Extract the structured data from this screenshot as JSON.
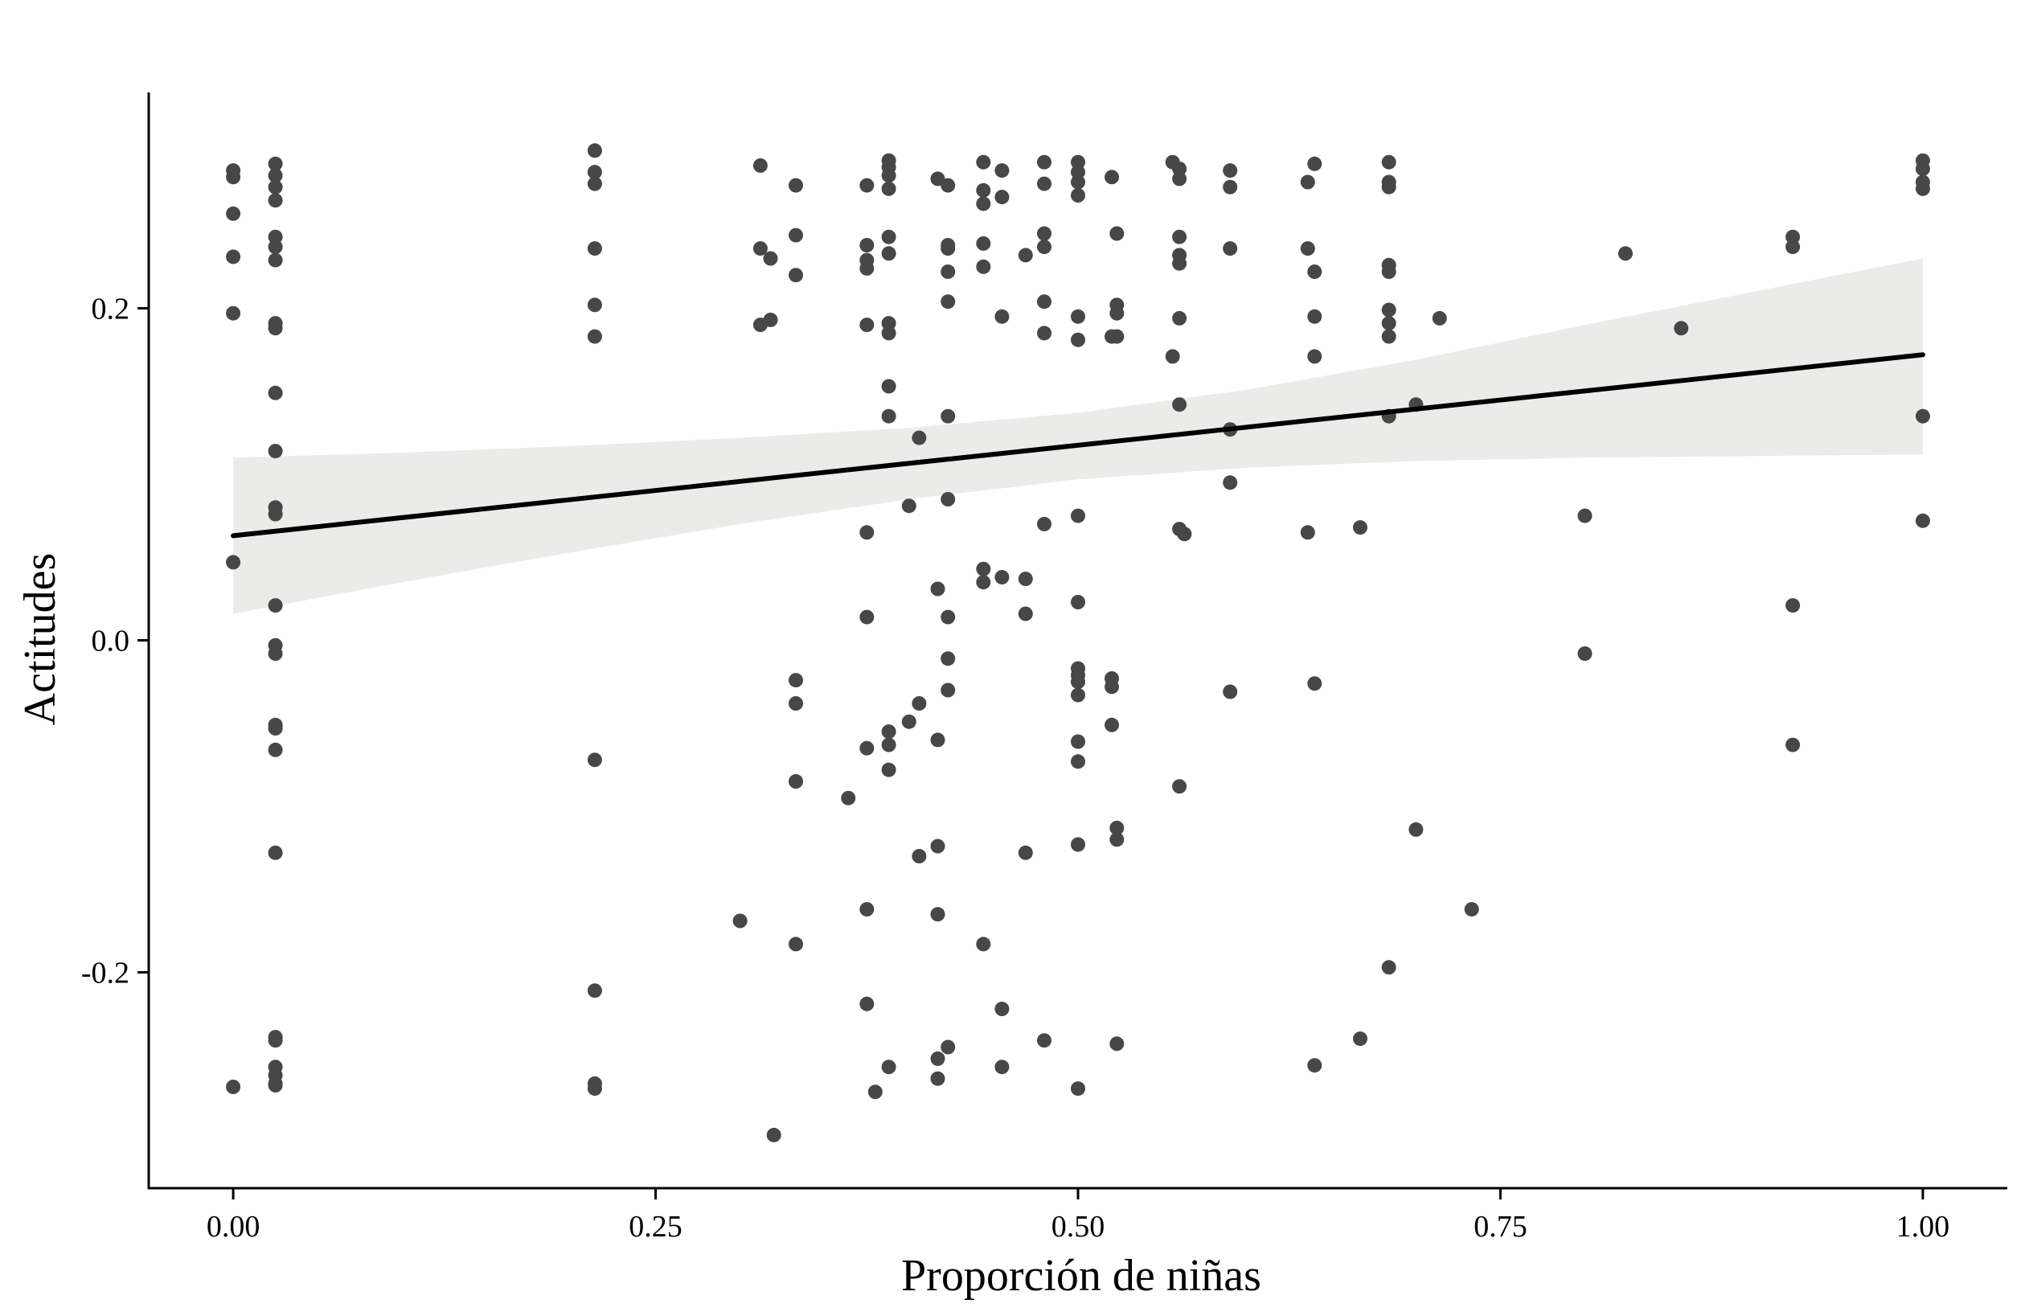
{
  "chart_data": {
    "type": "scatter",
    "xlabel": "Proporción de niñas",
    "ylabel": "Actitudes",
    "xlim": [
      -0.05,
      1.05
    ],
    "ylim": [
      -0.33,
      0.33
    ],
    "x_ticks": [
      0.0,
      0.25,
      0.5,
      0.75,
      1.0
    ],
    "x_tick_labels": [
      "0.00",
      "0.25",
      "0.50",
      "0.75",
      "1.00"
    ],
    "y_ticks": [
      -0.2,
      0.0,
      0.2
    ],
    "y_tick_labels": [
      "-0.2",
      "0.0",
      "0.2"
    ],
    "grid": false,
    "legend": "none",
    "colors": {
      "points": "#474747",
      "line": "#000000",
      "band": "#ebebe9",
      "axis": "#000000"
    },
    "regression": {
      "x": [
        0.0,
        1.0
      ],
      "y": [
        0.063,
        0.172
      ],
      "ci": {
        "x": [
          0.0,
          0.1,
          0.2,
          0.3,
          0.4,
          0.5,
          0.6,
          0.7,
          0.8,
          0.9,
          1.0
        ],
        "lower": [
          0.016,
          0.035,
          0.053,
          0.07,
          0.085,
          0.097,
          0.104,
          0.108,
          0.11,
          0.111,
          0.112
        ],
        "upper": [
          0.11,
          0.113,
          0.117,
          0.122,
          0.128,
          0.137,
          0.151,
          0.169,
          0.19,
          0.21,
          0.23
        ]
      }
    },
    "points": {
      "x": [
        0.0,
        0.0,
        0.0,
        0.0,
        0.0,
        0.0,
        0.0,
        0.025,
        0.025,
        0.025,
        0.025,
        0.025,
        0.025,
        0.025,
        0.025,
        0.025,
        0.025,
        0.025,
        0.025,
        0.025,
        0.025,
        0.025,
        0.025,
        0.025,
        0.025,
        0.025,
        0.025,
        0.025,
        0.025,
        0.025,
        0.025,
        0.025,
        0.025,
        0.214,
        0.214,
        0.214,
        0.214,
        0.214,
        0.214,
        0.214,
        0.214,
        0.214,
        0.214,
        0.3,
        0.312,
        0.312,
        0.312,
        0.318,
        0.318,
        0.32,
        0.333,
        0.333,
        0.333,
        0.333,
        0.333,
        0.333,
        0.333,
        0.364,
        0.375,
        0.375,
        0.375,
        0.375,
        0.375,
        0.375,
        0.375,
        0.375,
        0.375,
        0.375,
        0.38,
        0.388,
        0.388,
        0.388,
        0.388,
        0.388,
        0.388,
        0.388,
        0.388,
        0.388,
        0.388,
        0.388,
        0.388,
        0.388,
        0.388,
        0.4,
        0.4,
        0.406,
        0.406,
        0.406,
        0.417,
        0.417,
        0.417,
        0.417,
        0.417,
        0.417,
        0.417,
        0.423,
        0.423,
        0.423,
        0.423,
        0.423,
        0.423,
        0.423,
        0.423,
        0.423,
        0.423,
        0.423,
        0.444,
        0.444,
        0.444,
        0.444,
        0.444,
        0.444,
        0.444,
        0.444,
        0.455,
        0.455,
        0.455,
        0.455,
        0.455,
        0.455,
        0.469,
        0.469,
        0.469,
        0.469,
        0.48,
        0.48,
        0.48,
        0.48,
        0.48,
        0.48,
        0.48,
        0.48,
        0.5,
        0.5,
        0.5,
        0.5,
        0.5,
        0.5,
        0.5,
        0.5,
        0.5,
        0.5,
        0.5,
        0.5,
        0.5,
        0.5,
        0.5,
        0.5,
        0.52,
        0.52,
        0.52,
        0.52,
        0.52,
        0.523,
        0.523,
        0.523,
        0.523,
        0.523,
        0.523,
        0.523,
        0.556,
        0.556,
        0.56,
        0.56,
        0.56,
        0.56,
        0.56,
        0.56,
        0.56,
        0.56,
        0.56,
        0.563,
        0.59,
        0.59,
        0.59,
        0.59,
        0.59,
        0.59,
        0.636,
        0.636,
        0.636,
        0.64,
        0.64,
        0.64,
        0.64,
        0.64,
        0.64,
        0.667,
        0.667,
        0.684,
        0.684,
        0.684,
        0.684,
        0.684,
        0.684,
        0.684,
        0.684,
        0.684,
        0.684,
        0.7,
        0.7,
        0.714,
        0.733,
        0.8,
        0.8,
        0.824,
        0.857,
        0.923,
        0.923,
        0.923,
        0.923,
        1.0,
        1.0,
        1.0,
        1.0,
        1.0,
        1.0
      ],
      "y": [
        0.283,
        0.279,
        0.257,
        0.231,
        0.197,
        0.047,
        -0.269,
        0.287,
        0.28,
        0.273,
        0.265,
        0.243,
        0.237,
        0.229,
        0.191,
        0.188,
        0.149,
        0.114,
        0.08,
        0.076,
        0.021,
        -0.003,
        -0.008,
        -0.051,
        -0.053,
        -0.066,
        -0.128,
        -0.239,
        -0.241,
        -0.257,
        -0.262,
        -0.267,
        -0.268,
        0.295,
        0.282,
        0.275,
        0.236,
        0.202,
        0.183,
        -0.072,
        -0.211,
        -0.267,
        -0.27,
        -0.169,
        0.286,
        0.236,
        0.19,
        0.23,
        0.193,
        -0.298,
        0.274,
        0.244,
        0.22,
        -0.024,
        -0.038,
        -0.085,
        -0.183,
        -0.095,
        0.274,
        0.238,
        0.229,
        0.224,
        0.19,
        0.065,
        0.014,
        -0.065,
        -0.162,
        -0.219,
        -0.272,
        0.289,
        0.285,
        0.28,
        0.272,
        0.243,
        0.233,
        0.191,
        0.185,
        0.153,
        0.135,
        -0.055,
        -0.063,
        -0.078,
        -0.257,
        0.081,
        -0.049,
        0.122,
        -0.038,
        -0.13,
        0.278,
        0.031,
        -0.06,
        -0.124,
        -0.165,
        -0.252,
        -0.264,
        0.274,
        0.238,
        0.236,
        0.222,
        0.204,
        0.135,
        0.085,
        0.014,
        -0.011,
        -0.03,
        -0.245,
        0.288,
        0.271,
        0.263,
        0.239,
        0.225,
        0.043,
        0.035,
        -0.183,
        0.283,
        0.267,
        0.195,
        0.038,
        -0.222,
        -0.257,
        0.232,
        0.037,
        0.016,
        -0.128,
        0.288,
        0.275,
        0.245,
        0.237,
        0.204,
        0.185,
        0.07,
        -0.241,
        0.288,
        0.282,
        0.276,
        0.268,
        0.195,
        0.181,
        0.075,
        0.023,
        -0.017,
        -0.021,
        -0.033,
        -0.073,
        -0.123,
        -0.27,
        -0.025,
        -0.061,
        0.279,
        0.183,
        -0.028,
        -0.023,
        -0.051,
        0.245,
        0.202,
        0.197,
        0.183,
        -0.113,
        -0.12,
        -0.243,
        0.288,
        0.171,
        0.284,
        0.278,
        0.243,
        0.232,
        0.227,
        0.194,
        0.142,
        0.067,
        -0.088,
        0.064,
        0.283,
        0.273,
        0.236,
        0.127,
        0.095,
        -0.031,
        0.276,
        0.236,
        0.065,
        0.287,
        0.222,
        0.195,
        0.171,
        -0.026,
        -0.256,
        0.068,
        -0.24,
        0.288,
        0.276,
        0.273,
        0.226,
        0.222,
        0.199,
        0.191,
        0.183,
        0.135,
        -0.197,
        0.142,
        -0.114,
        0.194,
        -0.162,
        0.075,
        -0.008,
        0.233,
        0.188,
        0.243,
        0.237,
        0.021,
        -0.063,
        0.289,
        0.284,
        0.276,
        0.272,
        0.135,
        0.072
      ]
    }
  }
}
